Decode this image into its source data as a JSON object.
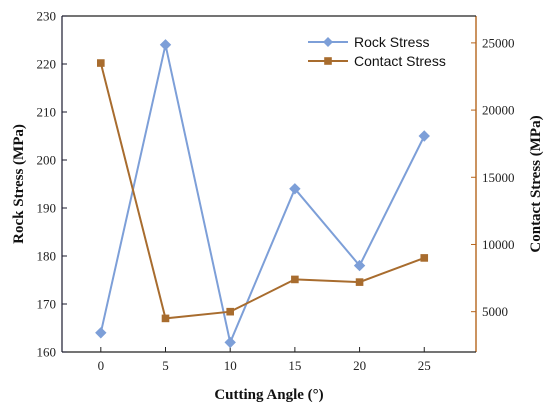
{
  "chart_data": {
    "type": "line",
    "title": "",
    "x": [
      0,
      5,
      10,
      15,
      20,
      25
    ],
    "xlabel": "Cutting Angle (°)",
    "xlim": [
      -3,
      29
    ],
    "xticks": [
      0,
      5,
      10,
      15,
      20,
      25
    ],
    "grid": false,
    "legend_position": "top-right",
    "y_left": {
      "label": "Rock Stress (MPa)",
      "lim": [
        160,
        230
      ],
      "ticks": [
        160,
        170,
        180,
        190,
        200,
        210,
        220,
        230
      ],
      "color": "#1a1a2e"
    },
    "y_right": {
      "label": "Contact Stress (MPa)",
      "lim": [
        2000,
        27000
      ],
      "ticks": [
        5000,
        10000,
        15000,
        20000,
        25000
      ],
      "color": "#b5651d"
    },
    "series": [
      {
        "name": "Rock Stress",
        "axis": "left",
        "marker": "diamond",
        "color": "#7d9fd8",
        "values": [
          164,
          224,
          162,
          194,
          178,
          205
        ]
      },
      {
        "name": "Contact Stress",
        "axis": "right",
        "marker": "square",
        "color": "#a86c2e",
        "values": [
          23500,
          4500,
          5000,
          7400,
          7200,
          9000
        ]
      }
    ]
  }
}
